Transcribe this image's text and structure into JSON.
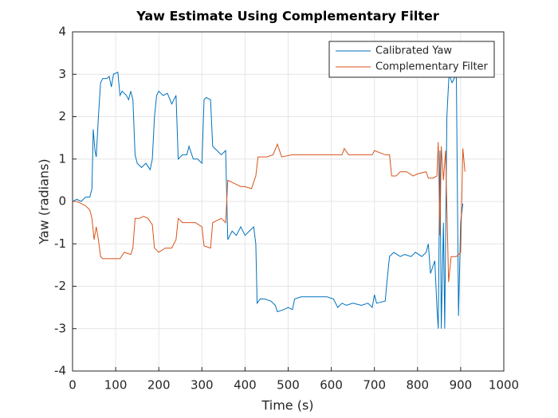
{
  "chart_data": {
    "type": "line",
    "title": "Yaw Estimate Using Complementary Filter",
    "xlabel": "Time (s)",
    "ylabel": "Yaw (radians)",
    "xlim": [
      0,
      1000
    ],
    "ylim": [
      -4,
      4
    ],
    "xticks": [
      0,
      100,
      200,
      300,
      400,
      500,
      600,
      700,
      800,
      900,
      1000
    ],
    "yticks": [
      -4,
      -3,
      -2,
      -1,
      0,
      1,
      2,
      3,
      4
    ],
    "grid": true,
    "legend": "northeast",
    "series": [
      {
        "name": "Calibrated Yaw",
        "color": "#0072bd",
        "x": [
          0,
          10,
          20,
          30,
          40,
          45,
          48,
          52,
          55,
          60,
          65,
          70,
          80,
          85,
          90,
          95,
          105,
          110,
          115,
          125,
          130,
          135,
          140,
          145,
          150,
          160,
          170,
          180,
          185,
          190,
          195,
          200,
          210,
          220,
          230,
          240,
          245,
          255,
          265,
          270,
          280,
          290,
          300,
          305,
          310,
          320,
          325,
          335,
          345,
          355,
          360,
          370,
          380,
          390,
          400,
          410,
          420,
          425,
          428,
          435,
          445,
          460,
          470,
          475,
          490,
          500,
          510,
          515,
          530,
          550,
          570,
          590,
          605,
          615,
          625,
          635,
          650,
          670,
          685,
          695,
          700,
          705,
          725,
          730,
          735,
          745,
          760,
          770,
          785,
          795,
          810,
          820,
          825,
          830,
          840,
          845,
          848,
          852,
          855,
          860,
          863,
          868,
          873,
          880,
          890,
          895,
          900,
          905
        ],
        "values": [
          0,
          0.05,
          0,
          0.1,
          0.1,
          0.3,
          1.7,
          1.2,
          1.05,
          2.0,
          2.8,
          2.9,
          2.9,
          2.95,
          2.7,
          3.0,
          3.05,
          2.5,
          2.6,
          2.5,
          2.4,
          2.6,
          2.4,
          1.1,
          0.9,
          0.8,
          0.9,
          0.75,
          1.0,
          2.0,
          2.5,
          2.6,
          2.5,
          2.55,
          2.3,
          2.5,
          1.0,
          1.1,
          1.1,
          1.3,
          1.0,
          1.0,
          0.9,
          2.4,
          2.45,
          2.4,
          1.3,
          1.2,
          1.1,
          1.2,
          -0.9,
          -0.7,
          -0.8,
          -0.6,
          -0.8,
          -0.7,
          -0.6,
          -1.0,
          -2.4,
          -2.3,
          -2.3,
          -2.35,
          -2.45,
          -2.6,
          -2.55,
          -2.5,
          -2.55,
          -2.3,
          -2.25,
          -2.25,
          -2.25,
          -2.25,
          -2.3,
          -2.5,
          -2.4,
          -2.45,
          -2.4,
          -2.45,
          -2.4,
          -2.5,
          -2.2,
          -2.4,
          -2.35,
          -1.8,
          -1.3,
          -1.2,
          -1.3,
          -1.25,
          -1.3,
          -1.2,
          -1.3,
          -1.2,
          -1.0,
          -1.7,
          -1.4,
          -2.5,
          -3.0,
          1.2,
          -3.0,
          -0.5,
          -3.0,
          2.0,
          3.0,
          2.8,
          3.0,
          -2.7,
          -0.5,
          -0.05
        ]
      },
      {
        "name": "Complementary Filter",
        "color": "#d95319",
        "x": [
          0,
          10,
          20,
          30,
          40,
          45,
          50,
          55,
          60,
          65,
          70,
          90,
          110,
          120,
          135,
          140,
          145,
          155,
          165,
          175,
          185,
          190,
          200,
          215,
          230,
          240,
          245,
          255,
          275,
          285,
          300,
          305,
          320,
          325,
          335,
          345,
          355,
          360,
          370,
          380,
          390,
          400,
          415,
          425,
          430,
          450,
          465,
          475,
          485,
          510,
          530,
          560,
          585,
          600,
          625,
          630,
          640,
          660,
          680,
          695,
          700,
          725,
          735,
          740,
          750,
          760,
          775,
          790,
          800,
          820,
          825,
          835,
          845,
          848,
          852,
          855,
          860,
          865,
          872,
          878,
          890,
          900,
          905,
          910
        ],
        "values": [
          0,
          0,
          -0.05,
          -0.1,
          -0.2,
          -0.4,
          -0.9,
          -0.6,
          -0.9,
          -1.3,
          -1.35,
          -1.35,
          -1.35,
          -1.2,
          -1.25,
          -1.1,
          -0.4,
          -0.4,
          -0.35,
          -0.4,
          -0.55,
          -1.1,
          -1.2,
          -1.1,
          -1.1,
          -0.9,
          -0.4,
          -0.5,
          -0.5,
          -0.5,
          -0.6,
          -1.05,
          -1.1,
          -0.5,
          -0.45,
          -0.4,
          -0.5,
          0.5,
          0.45,
          0.4,
          0.35,
          0.35,
          0.3,
          0.6,
          1.05,
          1.05,
          1.1,
          1.35,
          1.05,
          1.1,
          1.1,
          1.1,
          1.1,
          1.1,
          1.1,
          1.25,
          1.1,
          1.1,
          1.1,
          1.1,
          1.2,
          1.1,
          1.1,
          0.6,
          0.6,
          0.7,
          0.7,
          0.6,
          0.65,
          0.7,
          0.55,
          0.55,
          0.6,
          1.4,
          -0.8,
          1.3,
          0.5,
          1.2,
          -1.9,
          -1.3,
          -1.3,
          -1.2,
          1.25,
          0.7
        ]
      }
    ]
  }
}
